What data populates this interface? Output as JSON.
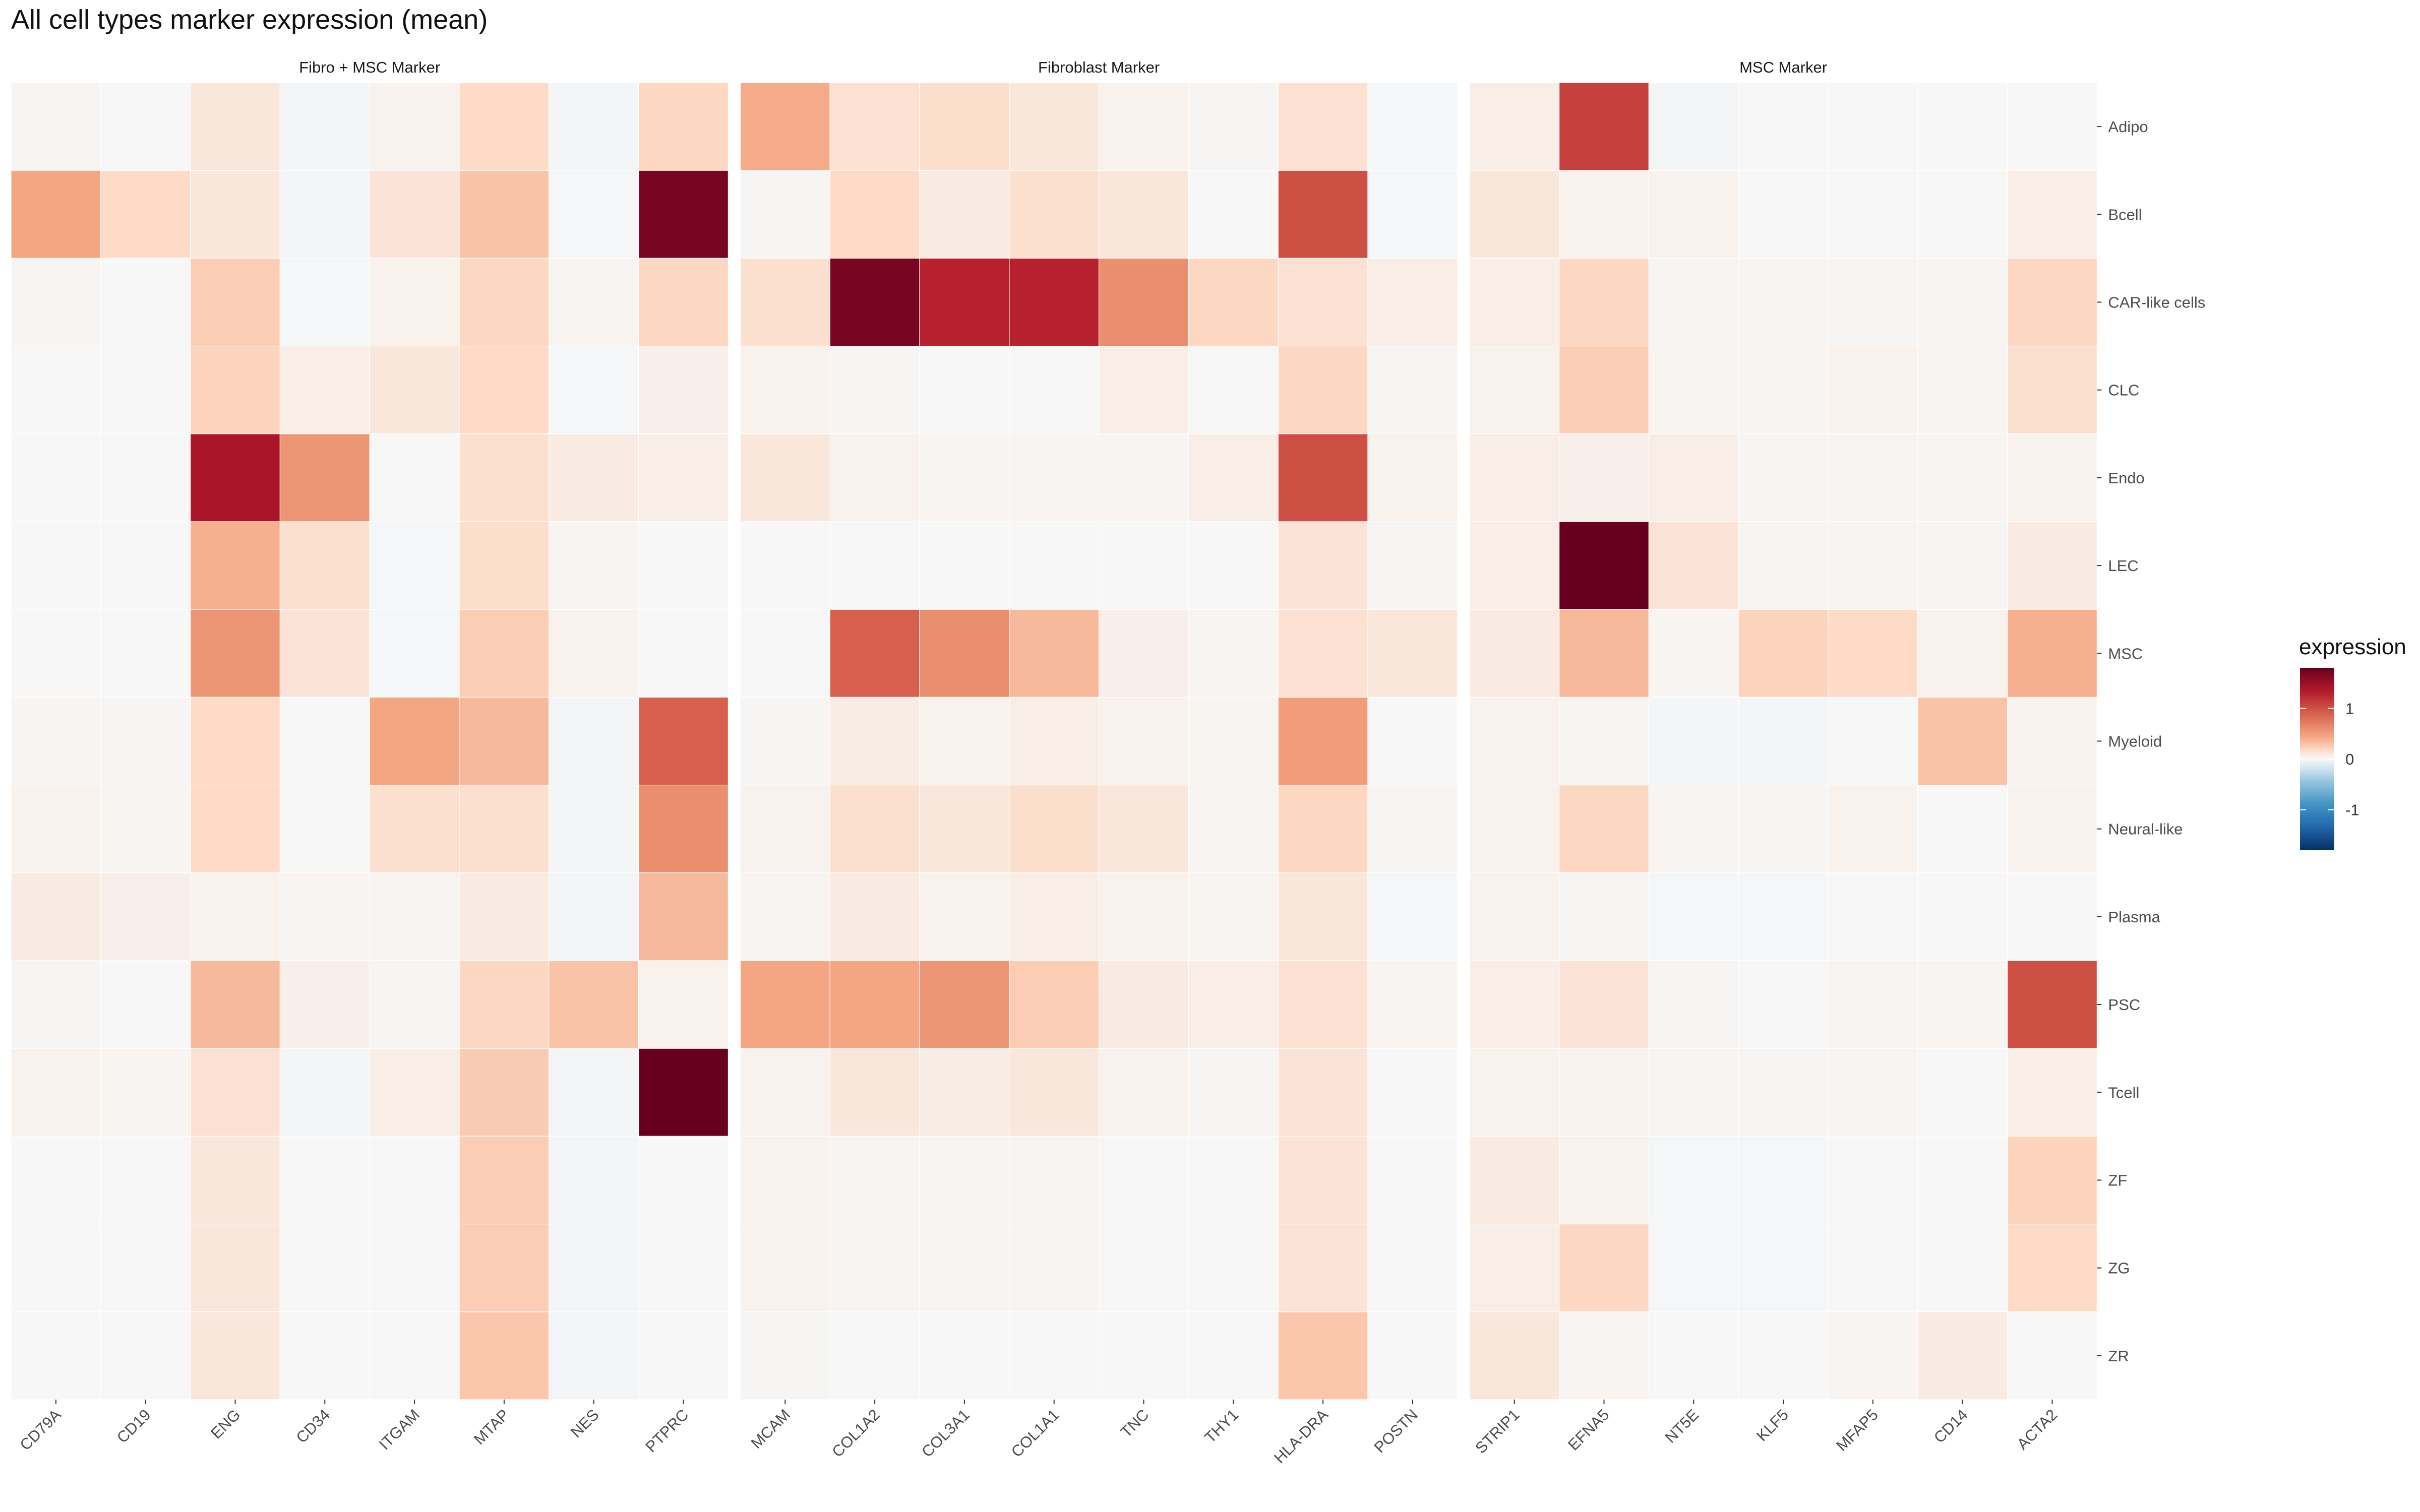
{
  "title": "All cell types marker expression (mean)",
  "chart_data": {
    "type": "heatmap",
    "title": "All cell types marker expression (mean)",
    "rows": [
      "Adipo",
      "Bcell",
      "CAR-like cells",
      "CLC",
      "Endo",
      "LEC",
      "MSC",
      "Myeloid",
      "Neural-like",
      "Plasma",
      "PSC",
      "Tcell",
      "ZF",
      "ZG",
      "ZR"
    ],
    "facets": [
      {
        "label": "Fibro + MSC Marker",
        "columns": [
          "CD79A",
          "CD19",
          "ENG",
          "CD34",
          "ITGAM",
          "MTAP",
          "NES",
          "PTPRC"
        ],
        "values": [
          [
            0.02,
            0.0,
            0.1,
            -0.02,
            0.03,
            0.18,
            -0.02,
            0.2
          ],
          [
            0.45,
            0.18,
            0.1,
            -0.02,
            0.12,
            0.3,
            -0.01,
            1.7
          ],
          [
            0.02,
            0.0,
            0.25,
            -0.01,
            0.04,
            0.2,
            0.02,
            0.2
          ],
          [
            0.0,
            0.0,
            0.22,
            0.06,
            0.1,
            0.18,
            -0.01,
            0.05
          ],
          [
            0.0,
            0.0,
            1.4,
            0.55,
            0.0,
            0.15,
            0.08,
            0.06
          ],
          [
            0.0,
            0.0,
            0.4,
            0.15,
            -0.01,
            0.16,
            0.02,
            0.0
          ],
          [
            0.0,
            0.0,
            0.55,
            0.12,
            -0.01,
            0.25,
            0.04,
            0.0
          ],
          [
            0.02,
            0.01,
            0.18,
            0.0,
            0.45,
            0.35,
            -0.02,
            0.9
          ],
          [
            0.04,
            0.02,
            0.18,
            0.0,
            0.15,
            0.15,
            -0.02,
            0.6
          ],
          [
            0.08,
            0.05,
            0.04,
            0.02,
            0.02,
            0.08,
            -0.02,
            0.35
          ],
          [
            0.01,
            0.0,
            0.35,
            0.05,
            0.01,
            0.2,
            0.3,
            0.04
          ],
          [
            0.04,
            0.02,
            0.14,
            -0.02,
            0.06,
            0.26,
            -0.02,
            2.0
          ],
          [
            0.0,
            0.0,
            0.1,
            0.0,
            0.0,
            0.25,
            -0.02,
            0.0
          ],
          [
            0.0,
            0.0,
            0.1,
            0.0,
            0.0,
            0.25,
            -0.02,
            0.0
          ],
          [
            0.0,
            0.0,
            0.1,
            0.0,
            0.0,
            0.28,
            -0.02,
            0.0
          ]
        ]
      },
      {
        "label": "Fibroblast Marker",
        "columns": [
          "MCAM",
          "COL1A2",
          "COL3A1",
          "COL1A1",
          "TNC",
          "THY1",
          "HLA-DRA",
          "POSTN"
        ],
        "values": [
          [
            0.42,
            0.14,
            0.16,
            0.1,
            0.04,
            0.01,
            0.14,
            -0.01
          ],
          [
            0.01,
            0.18,
            0.08,
            0.15,
            0.1,
            0.0,
            1.0,
            -0.01
          ],
          [
            0.15,
            1.7,
            1.3,
            1.3,
            0.6,
            0.2,
            0.14,
            0.06
          ],
          [
            0.04,
            0.01,
            0.0,
            0.0,
            0.06,
            0.0,
            0.2,
            0.02
          ],
          [
            0.1,
            0.04,
            0.02,
            0.02,
            0.02,
            0.06,
            1.0,
            0.04
          ],
          [
            0.0,
            0.0,
            0.0,
            0.0,
            0.0,
            0.0,
            0.12,
            0.01
          ],
          [
            0.0,
            0.9,
            0.6,
            0.35,
            0.05,
            0.02,
            0.14,
            0.1
          ],
          [
            0.01,
            0.07,
            0.04,
            0.06,
            0.04,
            0.02,
            0.5,
            0.0
          ],
          [
            0.03,
            0.15,
            0.1,
            0.16,
            0.1,
            0.02,
            0.2,
            0.02
          ],
          [
            0.02,
            0.08,
            0.04,
            0.06,
            0.04,
            0.02,
            0.1,
            -0.01
          ],
          [
            0.45,
            0.45,
            0.55,
            0.25,
            0.08,
            0.06,
            0.14,
            0.02
          ],
          [
            0.03,
            0.1,
            0.07,
            0.1,
            0.04,
            0.01,
            0.12,
            0.0
          ],
          [
            0.03,
            0.02,
            0.01,
            0.02,
            0.0,
            0.0,
            0.12,
            0.0
          ],
          [
            0.03,
            0.02,
            0.01,
            0.02,
            0.0,
            0.0,
            0.12,
            0.0
          ],
          [
            0.01,
            0.0,
            0.0,
            0.0,
            0.0,
            0.0,
            0.28,
            0.0
          ]
        ]
      },
      {
        "label": "MSC Marker",
        "columns": [
          "STRIP1",
          "EFNA5",
          "NT5E",
          "KLF5",
          "MFAP5",
          "CD14",
          "ACTA2"
        ],
        "values": [
          [
            0.06,
            1.1,
            -0.02,
            0.0,
            0.0,
            0.0,
            0.0
          ],
          [
            0.1,
            0.04,
            0.04,
            0.0,
            0.0,
            0.0,
            0.06
          ],
          [
            0.06,
            0.2,
            0.01,
            0.01,
            0.01,
            0.02,
            0.2
          ],
          [
            0.04,
            0.25,
            0.02,
            0.02,
            0.04,
            0.02,
            0.15
          ],
          [
            0.06,
            0.05,
            0.06,
            0.01,
            0.02,
            0.02,
            0.03
          ],
          [
            0.06,
            1.8,
            0.12,
            0.01,
            0.01,
            0.01,
            0.08
          ],
          [
            0.08,
            0.35,
            0.02,
            0.22,
            0.18,
            0.04,
            0.4
          ],
          [
            0.04,
            0.02,
            -0.02,
            -0.02,
            0.0,
            0.3,
            0.03
          ],
          [
            0.04,
            0.2,
            0.02,
            0.01,
            0.04,
            0.0,
            0.03
          ],
          [
            0.04,
            0.01,
            -0.01,
            -0.01,
            0.0,
            0.0,
            0.0
          ],
          [
            0.06,
            0.12,
            0.01,
            0.0,
            0.02,
            0.02,
            1.0
          ],
          [
            0.04,
            0.04,
            0.02,
            0.01,
            0.02,
            0.0,
            0.06
          ],
          [
            0.08,
            0.04,
            -0.01,
            -0.01,
            0.0,
            0.0,
            0.22
          ],
          [
            0.06,
            0.2,
            -0.01,
            -0.01,
            0.0,
            0.0,
            0.18
          ],
          [
            0.1,
            0.02,
            0.0,
            0.0,
            0.02,
            0.08,
            0.0
          ]
        ]
      }
    ],
    "legend": {
      "title": "expression",
      "ticks": [
        1,
        0,
        -1
      ],
      "tick_labels": [
        "1",
        "0",
        "-1"
      ],
      "range": [
        -1.8,
        1.8
      ],
      "position": "right",
      "palette": "RdBu (reversed)"
    },
    "colors": {
      "panel_background": "#ebebeb",
      "high": "#67001f",
      "mid": "#f7f7f7",
      "low": "#053061"
    }
  }
}
